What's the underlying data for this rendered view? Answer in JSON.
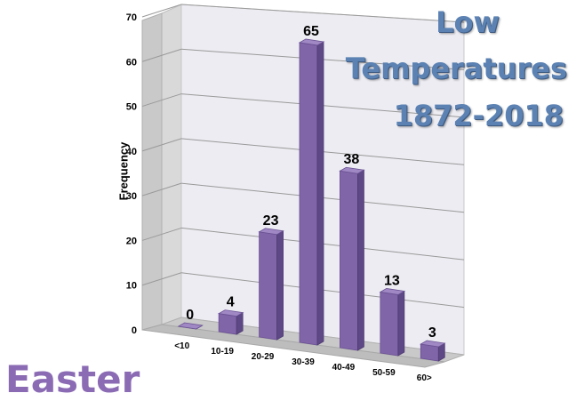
{
  "title_lines": [
    "Low",
    "Temperatures",
    "1872-2018"
  ],
  "watermark": "Easter",
  "colors": {
    "title": "#5b82b3",
    "watermark": "#8b6bb3",
    "bar_front": "#8065a8",
    "bar_side": "#5e4885",
    "bar_top": "#a088c4"
  },
  "chart_data": {
    "type": "bar",
    "title": "Low Temperatures 1872-2018",
    "xlabel": "",
    "ylabel": "Frequency",
    "categories": [
      "<10",
      "10-19",
      "20-29",
      "30-39",
      "40-49",
      "50-59",
      "60>"
    ],
    "values": [
      0,
      4,
      23,
      65,
      38,
      13,
      3
    ],
    "data_labels": [
      "0",
      "4",
      "23",
      "65",
      "38",
      "13",
      "3"
    ],
    "ylim": [
      0,
      70
    ],
    "yticks": [
      "0",
      "10",
      "20",
      "30",
      "40",
      "50",
      "60",
      "70"
    ],
    "grid": true,
    "legend": "none",
    "style": "3d"
  }
}
